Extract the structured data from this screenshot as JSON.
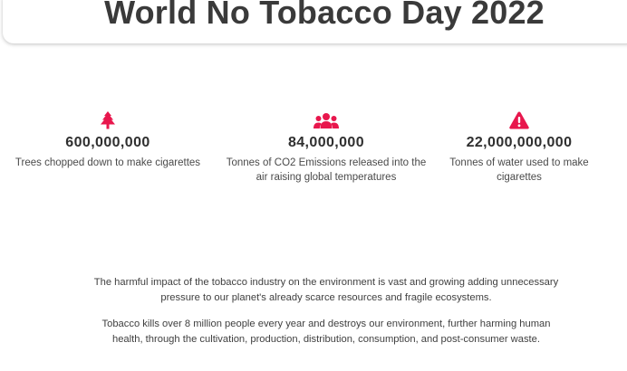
{
  "header": {
    "title": "World No Tobacco Day 2022"
  },
  "stats": [
    {
      "icon": "tree-icon",
      "number": "600,000,000",
      "description": "Trees chopped down to make cigarettes"
    },
    {
      "icon": "people-group-icon",
      "number": "84,000,000",
      "description": "Tonnes of CO2 Emissions released into the air raising global temperatures"
    },
    {
      "icon": "warning-triangle-icon",
      "number": "22,000,000,000",
      "description": "Tonnes of water used to make cigarettes"
    }
  ],
  "paragraphs": [
    "The harmful impact of the tobacco industry on the environment is vast and growing adding unnecessary pressure to our planet's already scarce resources and fragile ecosystems.",
    "Tobacco kills over 8 million people every year and destroys our environment, further harming human health, through the cultivation, production, distribution, consumption, and post-consumer waste."
  ],
  "colors": {
    "accent": "#e8174d",
    "text": "#3a3a3a"
  }
}
